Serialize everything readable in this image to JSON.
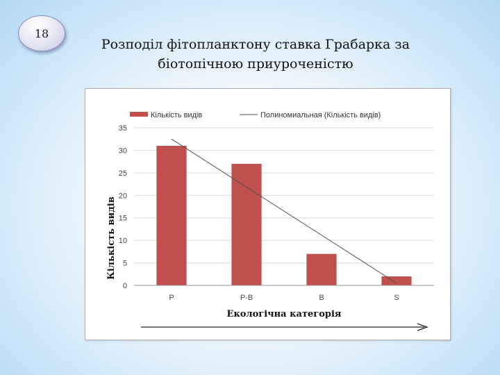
{
  "slide": {
    "number": "18",
    "title_lines": [
      "Розподіл фітопланктону ставка Грабарка за",
      "біотопічною приуроченістю"
    ]
  },
  "colors": {
    "bar": "#c0504d",
    "trendline": "#4f4f4f",
    "grid": "#d9d9d9"
  },
  "chart_data": {
    "type": "bar",
    "title": "",
    "categories": [
      "P",
      "P-B",
      "B",
      "S"
    ],
    "series": [
      {
        "name": "Кількість видів",
        "values": [
          31,
          27,
          7,
          2
        ]
      }
    ],
    "trendline": {
      "name": "Полиномиальная (Кількість видів)",
      "type": "polynomial",
      "start": 32.5,
      "end": 0.5
    },
    "xlabel": "Екологічна категорія",
    "ylabel": "Кількість видів",
    "ylim": [
      0,
      35
    ],
    "yticks": [
      "0",
      "5",
      "10",
      "15",
      "20",
      "25",
      "30",
      "35"
    ],
    "grid": true,
    "legend": "top",
    "x_arrow": true
  }
}
